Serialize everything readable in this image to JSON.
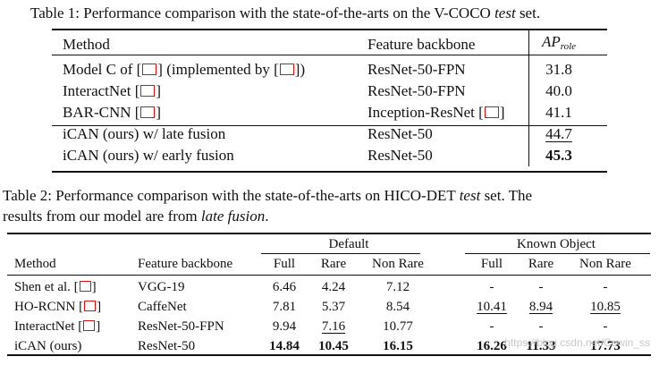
{
  "table1": {
    "caption_prefix": "Table 1: Performance comparison with the state-of-the-arts on the V-COCO ",
    "caption_em": "test",
    "caption_suffix": " set.",
    "headers": {
      "method": "Method",
      "backbone": "Feature backbone",
      "ap_main": "AP",
      "ap_sub": "role"
    },
    "rows": [
      {
        "method_a": "Model C of [",
        "method_b": "] (implemented by [",
        "method_c": "])",
        "backbone": "ResNet-50-FPN",
        "ap": "31.8"
      },
      {
        "method_a": "InteractNet [",
        "method_b": "]",
        "backbone": "ResNet-50-FPN",
        "ap": "40.0"
      },
      {
        "method_a": "BAR-CNN [",
        "method_b": "]",
        "backbone_a": "Inception-ResNet [",
        "backbone_b": "]",
        "ap": "41.1"
      },
      {
        "method": "iCAN (ours) w/ late fusion",
        "backbone": "ResNet-50",
        "ap": "44.7"
      },
      {
        "method": "iCAN (ours) w/ early fusion",
        "backbone": "ResNet-50",
        "ap": "45.3"
      }
    ]
  },
  "table2": {
    "caption_line1_prefix": "Table 2: Performance comparison with the state-of-the-arts on HICO-DET ",
    "caption_em": "test",
    "caption_line1_suffix": " set. The",
    "caption_line2_prefix": "results from our model are from ",
    "caption_line2_em": "late fusion",
    "caption_line2_suffix": ".",
    "group_headers": {
      "default": "Default",
      "known": "Known Object"
    },
    "headers": [
      "Method",
      "Feature backbone",
      "Full",
      "Rare",
      "Non Rare",
      "Full",
      "Rare",
      "Non Rare"
    ],
    "rows": [
      {
        "method_a": "Shen et al. [",
        "method_b": "]",
        "backbone": "VGG-19",
        "values": [
          "6.46",
          "4.24",
          "7.12",
          "-",
          "-",
          "-"
        ]
      },
      {
        "method_a": "HO-RCNN [",
        "method_b": "]",
        "backbone": "CaffeNet",
        "values": [
          "7.81",
          "5.37",
          "8.54",
          "10.41",
          "8.94",
          "10.85"
        ]
      },
      {
        "method_a": "InteractNet [",
        "method_b": "]",
        "backbone": "ResNet-50-FPN",
        "values": [
          "9.94",
          "7.16",
          "10.77",
          "-",
          "-",
          "-"
        ]
      },
      {
        "method": "iCAN (ours)",
        "backbone": "ResNet-50",
        "values": [
          "14.84",
          "10.45",
          "16.15",
          "16.26",
          "11.33",
          "17.73"
        ]
      }
    ]
  },
  "watermark": "https://blog.csdn.net/Cowin_ss"
}
